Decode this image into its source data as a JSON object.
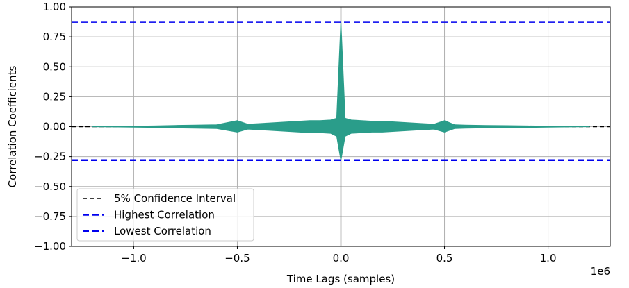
{
  "chart_data": {
    "type": "line",
    "xlabel": "Time Lags (samples)",
    "ylabel": "Correlation Coefficients",
    "x_offset_label": "1e6",
    "xlim": [
      -1.3,
      1.3
    ],
    "ylim": [
      -1.0,
      1.0
    ],
    "x_ticks": [
      {
        "value": -1.0,
        "label": "−1.0"
      },
      {
        "value": -0.5,
        "label": "−0.5"
      },
      {
        "value": 0.0,
        "label": "0.0"
      },
      {
        "value": 0.5,
        "label": "0.5"
      },
      {
        "value": 1.0,
        "label": "1.0"
      }
    ],
    "y_ticks": [
      {
        "value": 1.0,
        "label": "1.00"
      },
      {
        "value": 0.75,
        "label": "0.75"
      },
      {
        "value": 0.5,
        "label": "0.50"
      },
      {
        "value": 0.25,
        "label": "0.25"
      },
      {
        "value": 0.0,
        "label": "0.00"
      },
      {
        "value": -0.25,
        "label": "−0.25"
      },
      {
        "value": -0.5,
        "label": "−0.50"
      },
      {
        "value": -0.75,
        "label": "−0.75"
      },
      {
        "value": -1.0,
        "label": "−1.00"
      }
    ],
    "grid": true,
    "legend_position": "lower-left",
    "legend": [
      {
        "label": "5% Confidence Interval",
        "color": "#000000",
        "style": "dashed"
      },
      {
        "label": "Highest Correlation",
        "color": "#0000ee",
        "style": "dashed"
      },
      {
        "label": "Lowest Correlation",
        "color": "#0000ee",
        "style": "dashed"
      }
    ],
    "reference_lines": {
      "confidence_interval": 0.0,
      "highest_correlation": 0.875,
      "lowest_correlation": -0.28,
      "zero_lag_vertical": 0.0
    },
    "series": [
      {
        "color": "#2a9d8a",
        "x": [
          -1.2,
          -1.1,
          -1.0,
          -0.9,
          -0.8,
          -0.7,
          -0.6,
          -0.5,
          -0.45,
          -0.4,
          -0.35,
          -0.3,
          -0.25,
          -0.2,
          -0.15,
          -0.1,
          -0.05,
          -0.02,
          0.0,
          0.02,
          0.05,
          0.1,
          0.15,
          0.2,
          0.25,
          0.3,
          0.35,
          0.4,
          0.45,
          0.5,
          0.55,
          0.6,
          0.7,
          0.8,
          0.9,
          1.0,
          1.1,
          1.2
        ],
        "upper": [
          0.0,
          0.002,
          0.004,
          0.006,
          0.01,
          0.012,
          0.015,
          0.05,
          0.02,
          0.025,
          0.03,
          0.035,
          0.04,
          0.045,
          0.05,
          0.05,
          0.055,
          0.07,
          0.875,
          0.07,
          0.055,
          0.05,
          0.045,
          0.045,
          0.04,
          0.035,
          0.03,
          0.025,
          0.02,
          0.05,
          0.015,
          0.012,
          0.01,
          0.008,
          0.006,
          0.004,
          0.002,
          0.0
        ],
        "lower": [
          0.0,
          -0.002,
          -0.004,
          -0.006,
          -0.01,
          -0.012,
          -0.015,
          -0.045,
          -0.02,
          -0.025,
          -0.03,
          -0.035,
          -0.04,
          -0.045,
          -0.05,
          -0.05,
          -0.055,
          -0.08,
          -0.28,
          -0.08,
          -0.055,
          -0.05,
          -0.045,
          -0.045,
          -0.04,
          -0.035,
          -0.03,
          -0.025,
          -0.02,
          -0.045,
          -0.015,
          -0.012,
          -0.01,
          -0.008,
          -0.006,
          -0.004,
          -0.002,
          0.0
        ]
      }
    ]
  }
}
